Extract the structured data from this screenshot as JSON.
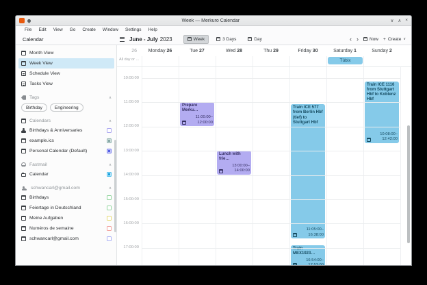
{
  "window": {
    "title": "Week — Merkuro Calendar",
    "controls": {
      "minimize": "∨",
      "maximize": "∧",
      "close": "×"
    }
  },
  "menu": [
    "File",
    "Edit",
    "View",
    "Go",
    "Create",
    "Window",
    "Settings",
    "Help"
  ],
  "toolbar": {
    "sidebar_header": "Calendar",
    "period": "June - July",
    "year": "2023",
    "views": [
      {
        "label": "Week",
        "selected": true
      },
      {
        "label": "3 Days",
        "selected": false
      },
      {
        "label": "Day",
        "selected": false
      }
    ],
    "prev": "‹",
    "next": "›",
    "now": "Now",
    "create_plus": "+",
    "create": "Create",
    "create_chevron": "∨"
  },
  "sidebar": {
    "collapse_glyph": "∧",
    "views": [
      {
        "label": "Month View",
        "icon": "calendar-icon",
        "selected": false
      },
      {
        "label": "Week View",
        "icon": "calendar-icon",
        "selected": true
      },
      {
        "label": "Schedule View",
        "icon": "list-icon",
        "selected": false
      },
      {
        "label": "Tasks View",
        "icon": "list-icon",
        "selected": false
      }
    ],
    "sections": [
      {
        "label": "Tags",
        "icon": "tag-icon",
        "chips": [
          "Birthday",
          "Engineering"
        ]
      },
      {
        "label": "Calendars",
        "icon": "calendar-icon",
        "items": [
          {
            "label": "Birthdays & Anniversaries",
            "icon": "people-icon",
            "checked": false,
            "border": "#a9a5f0",
            "fill": "#ffffff"
          },
          {
            "label": "example.ics",
            "icon": "calendar-icon",
            "checked": true,
            "border": "#8fb0ae",
            "fill": "#cfe0de",
            "dot": "#88a8a6"
          },
          {
            "label": "Personal Calendar (Default)",
            "icon": "calendar-icon",
            "checked": true,
            "border": "#7b82ee",
            "fill": "#c3c6f7",
            "dot": "#555fe4"
          }
        ]
      },
      {
        "label": "Fastmail",
        "icon": "globe-icon",
        "items": [
          {
            "label": "Calendar",
            "icon": "folder-icon",
            "checked": true,
            "border": "#4fc0ee",
            "fill": "#b4e2f6",
            "dot": "#169fdd"
          }
        ]
      },
      {
        "label": "schwancarl@gmail.com",
        "icon": "person-icon",
        "items": [
          {
            "label": "Birthdays",
            "icon": "calendar-icon",
            "checked": false,
            "border": "#8fd49b",
            "fill": "#ffffff"
          },
          {
            "label": "Feiertage in Deutschland",
            "icon": "calendar-icon",
            "checked": false,
            "border": "#8fd49b",
            "fill": "#ffffff"
          },
          {
            "label": "Meine Aufgaben",
            "icon": "calendar-icon",
            "checked": false,
            "border": "#e6da74",
            "fill": "#ffffff"
          },
          {
            "label": "Numéros de semaine",
            "icon": "calendar-icon",
            "checked": false,
            "border": "#f2a29e",
            "fill": "#ffffff"
          },
          {
            "label": "schwancarl@gmail.com",
            "icon": "calendar-icon",
            "checked": false,
            "border": "#a8aef4",
            "fill": "#ffffff"
          }
        ]
      }
    ]
  },
  "calendar": {
    "week_number": "26",
    "allday_label": "All day or ...",
    "days": [
      {
        "name": "Monday",
        "num": "26"
      },
      {
        "name": "Tue",
        "num": "27"
      },
      {
        "name": "Wed",
        "num": "28"
      },
      {
        "name": "Thu",
        "num": "29"
      },
      {
        "name": "Friday",
        "num": "30"
      },
      {
        "name": "Saturday",
        "num": "1"
      },
      {
        "name": "Sunday",
        "num": "2"
      }
    ],
    "hours": [
      "10:00:00",
      "11:00:00",
      "12:00:00",
      "13:00:00",
      "14:00:00",
      "15:00:00",
      "16:00:00",
      "17:00:00"
    ],
    "themes": {
      "purple": {
        "bg": "#b3acf1",
        "fg": "#363063"
      },
      "cyan": {
        "bg": "#85cae9",
        "fg": "#154b61"
      }
    },
    "allday_events": [
      {
        "title": "Tübix",
        "day": 5,
        "theme": "cyan"
      }
    ],
    "events": [
      {
        "title": "Prepare Merku…",
        "day": 1,
        "start": "11:00:00",
        "end": "12:00:00",
        "theme": "purple"
      },
      {
        "title": "Lunch with frie…",
        "day": 2,
        "start": "13:00:00",
        "end": "14:00:00",
        "theme": "purple"
      },
      {
        "title": "Train ICE 577 from Berlin Hbf (tief) to Stuttgart Hbf",
        "day": 4,
        "start": "11:05:00",
        "end": "16:38:00",
        "theme": "cyan"
      },
      {
        "title": "Train MEX1923…",
        "day": 4,
        "start": "16:54:00",
        "end": "17:53:00",
        "theme": "cyan"
      },
      {
        "title": "Train ICE 1116 from Stuttgart Hbf to Koblenz Hbf",
        "day": 6,
        "start": "10:08:00",
        "end": "12:42:00",
        "theme": "cyan"
      }
    ]
  }
}
